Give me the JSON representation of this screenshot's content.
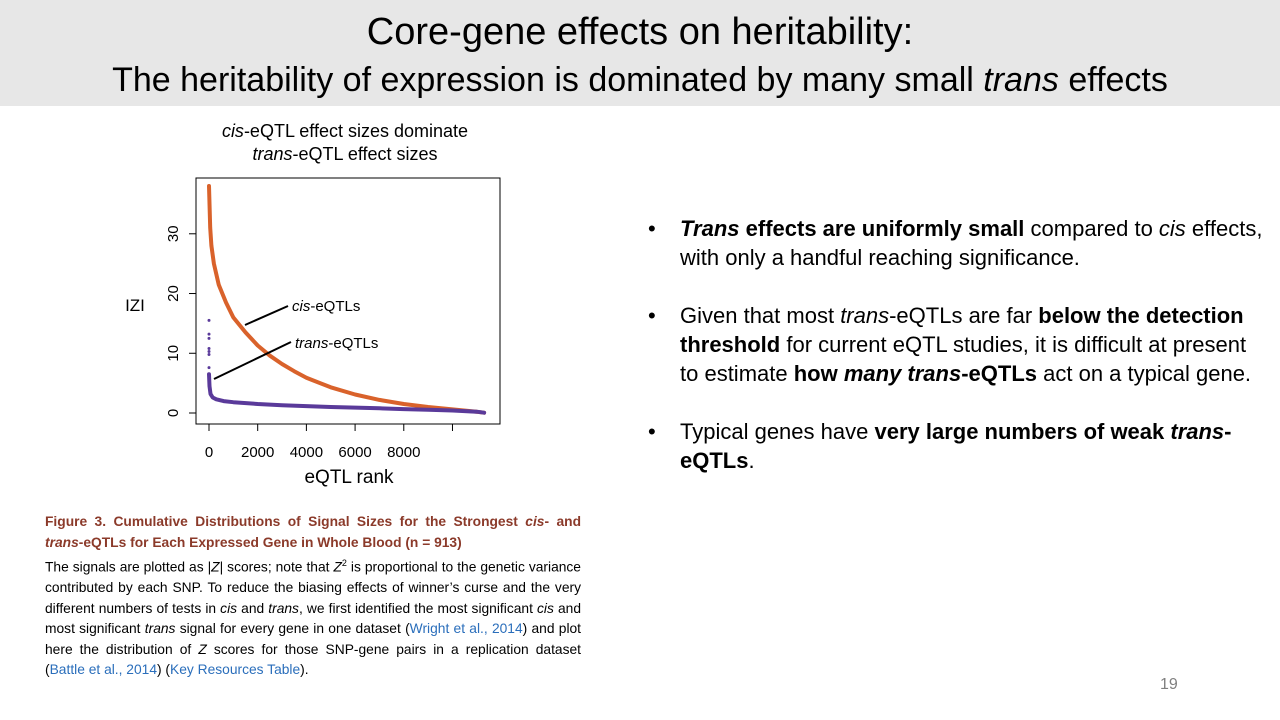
{
  "slide": {
    "title_line1": "Core-gene effects on heritability:",
    "title_line2": {
      "pre": "The heritability of expression is dominated by many small ",
      "em": "trans",
      "post": " effects"
    },
    "page_number": "19"
  },
  "chart_title": {
    "line1_em": "cis",
    "line1_rest": "-eQTL effect sizes dominate",
    "line2_em": "trans",
    "line2_rest": "-eQTL effect sizes"
  },
  "chart_data": {
    "type": "line",
    "title": "cis-eQTL effect sizes dominate trans-eQTL effect sizes",
    "xlabel": "eQTL rank",
    "ylabel": "IZI",
    "xlim": [
      0,
      11500
    ],
    "ylim": [
      0,
      38
    ],
    "x_ticks": [
      0,
      2000,
      4000,
      6000,
      8000
    ],
    "y_ticks": [
      0,
      10,
      20,
      30
    ],
    "x_ticks_extra": [
      10000
    ],
    "series": [
      {
        "name": "cis-eQTLs",
        "color": "#d9622b",
        "x": [
          0,
          50,
          100,
          200,
          400,
          700,
          1000,
          1500,
          2000,
          2500,
          3000,
          3500,
          4000,
          5000,
          6000,
          7000,
          8000,
          9000,
          10000,
          11000,
          11300
        ],
        "y": [
          38,
          31,
          28,
          25,
          21.5,
          18.5,
          16,
          13.5,
          11.3,
          9.6,
          8.2,
          7,
          5.9,
          4.3,
          3.1,
          2.2,
          1.5,
          1.0,
          0.6,
          0.2,
          0.05
        ]
      },
      {
        "name": "trans-eQTLs",
        "color": "#5a3a9a",
        "x": [
          0,
          20,
          60,
          150,
          300,
          600,
          1000,
          2000,
          3000,
          4000,
          5000,
          6000,
          7000,
          8000,
          9000,
          10000,
          11000,
          11300
        ],
        "y": [
          6.5,
          4.5,
          3.2,
          2.6,
          2.3,
          2.0,
          1.8,
          1.5,
          1.3,
          1.15,
          1.0,
          0.9,
          0.78,
          0.66,
          0.55,
          0.42,
          0.22,
          0.05
        ]
      }
    ],
    "outliers": {
      "name": "trans-eQTLs",
      "x": [
        0,
        0,
        0,
        0,
        0,
        0,
        0
      ],
      "y": [
        15.5,
        13.2,
        12.5,
        10.8,
        10.3,
        9.8,
        7.6
      ]
    },
    "annotations": [
      {
        "text_em": "cis",
        "text_rest": "-eQTLs",
        "series": "cis-eQTLs"
      },
      {
        "text_em": "trans",
        "text_rest": "-eQTLs",
        "series": "trans-eQTLs"
      }
    ]
  },
  "caption": {
    "heading_pre": "Figure 3.  Cumulative Distributions of Signal Sizes for the Strongest ",
    "heading_cis": "cis",
    "heading_mid": "- and ",
    "heading_trans": "trans",
    "heading_post": "-eQTLs for Each Expressed Gene in Whole Blood (n = 913)",
    "b1": "The signals are plotted as |",
    "b2": "Z",
    "b3": "| scores; note that ",
    "b4": "Z",
    "b4sup": "2",
    "b5": " is proportional to the genetic variance contributed by each SNP. To reduce the biasing effects of winner’s curse and the very different numbers of tests in ",
    "b6": "cis",
    "b7": " and ",
    "b8": "trans",
    "b9": ", we first identified the most significant ",
    "b10": "cis",
    "b11": " and most significant ",
    "b12": "trans",
    "b13": " signal for every gene in one dataset (",
    "link1": "Wright et al., 2014",
    "b14": ") and plot here the distribution of ",
    "b15": "Z",
    "b16": " scores for those SNP-gene pairs in a replication dataset (",
    "link2": "Battle et al., 2014",
    "b17": ") (",
    "link3": "Key Resources Table",
    "b18": ")."
  },
  "bullets": [
    {
      "bold_em": "Trans",
      "bold": " effects are uniformly small",
      "t1": " compared to ",
      "em1": "cis",
      "t2": " effects, with only a handful reaching significance."
    },
    {
      "t1": "Given that most ",
      "em1": "trans",
      "t2": "-eQTLs are far ",
      "bold1": "below the detection threshold",
      "t3": " for current eQTL studies, it is difficult at present to estimate ",
      "bold2": "how ",
      "bold_em1": "many trans",
      "bold3": "-eQTLs",
      "t4": " act on a typical gene."
    },
    {
      "t1": "Typical genes have ",
      "bold1": "very large numbers of weak ",
      "bold_em1": "trans",
      "bold2": "-eQTLs",
      "t2": "."
    }
  ],
  "bullet_marker": "•"
}
